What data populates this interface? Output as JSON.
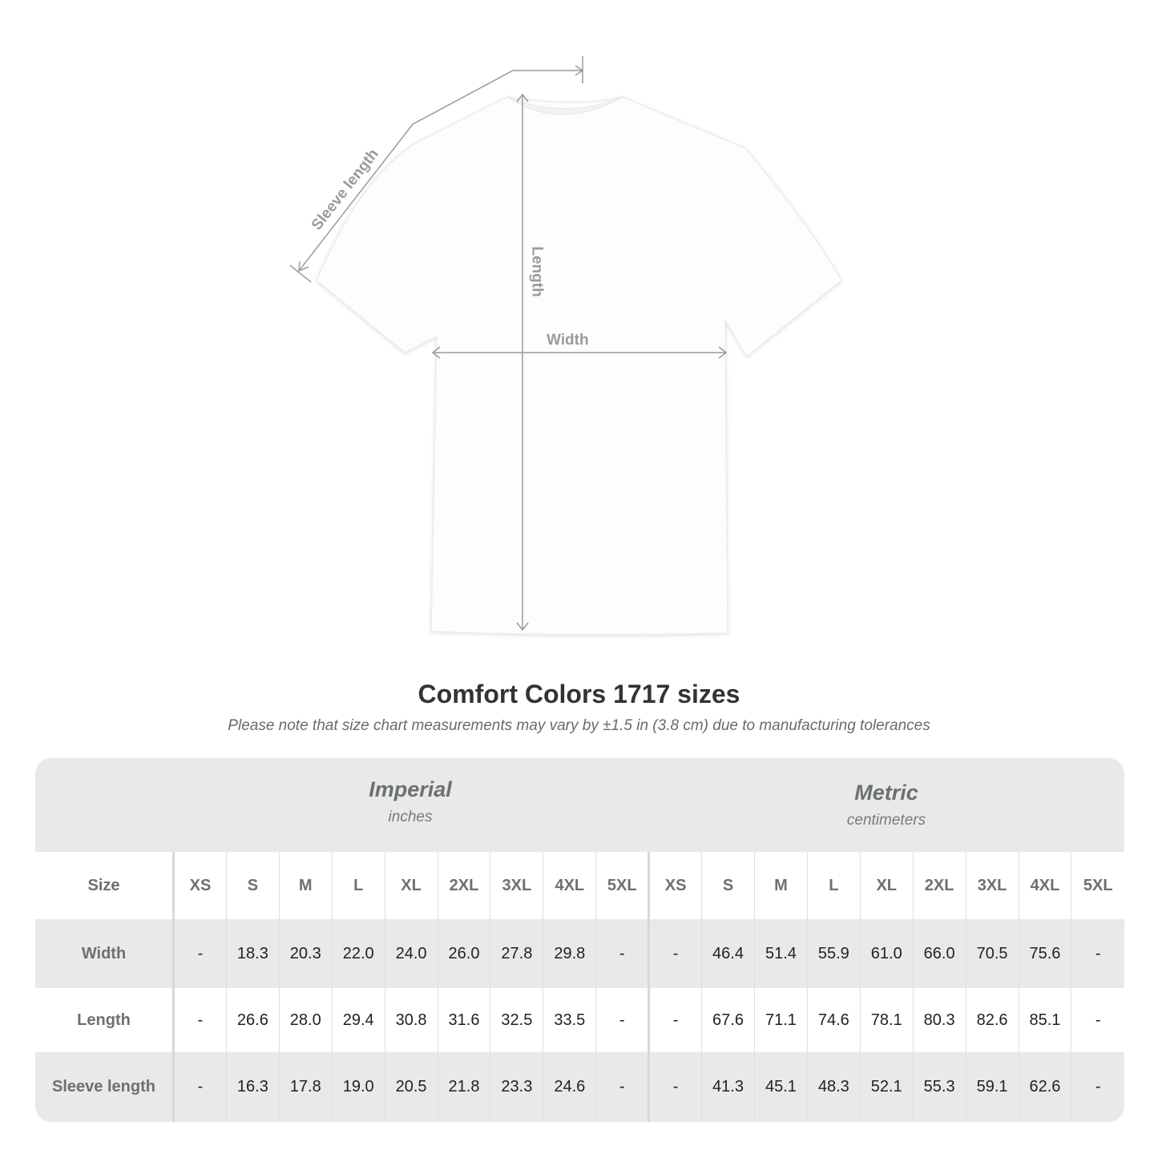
{
  "diagram": {
    "labels": {
      "sleeve": "Sleeve length",
      "length": "Length",
      "width": "Width"
    }
  },
  "title": "Comfort Colors 1717 sizes",
  "subtitle": "Please note that size chart measurements may vary by ±1.5 in (3.8 cm) due to manufacturing tolerances",
  "imperial": {
    "name": "Imperial",
    "unit": "inches"
  },
  "metric": {
    "name": "Metric",
    "unit": "centimeters"
  },
  "size_label": "Size",
  "sizes": [
    "XS",
    "S",
    "M",
    "L",
    "XL",
    "2XL",
    "3XL",
    "4XL",
    "5XL"
  ],
  "rows": [
    {
      "label": "Width",
      "imperial": [
        "-",
        "18.3",
        "20.3",
        "22.0",
        "24.0",
        "26.0",
        "27.8",
        "29.8",
        "-"
      ],
      "metric": [
        "-",
        "46.4",
        "51.4",
        "55.9",
        "61.0",
        "66.0",
        "70.5",
        "75.6",
        "-"
      ]
    },
    {
      "label": "Length",
      "imperial": [
        "-",
        "26.6",
        "28.0",
        "29.4",
        "30.8",
        "31.6",
        "32.5",
        "33.5",
        "-"
      ],
      "metric": [
        "-",
        "67.6",
        "71.1",
        "74.6",
        "78.1",
        "80.3",
        "82.6",
        "85.1",
        "-"
      ]
    },
    {
      "label": "Sleeve length",
      "imperial": [
        "-",
        "16.3",
        "17.8",
        "19.0",
        "20.5",
        "21.8",
        "23.3",
        "24.6",
        "-"
      ],
      "metric": [
        "-",
        "41.3",
        "45.1",
        "48.3",
        "52.1",
        "55.3",
        "59.1",
        "62.6",
        "-"
      ]
    }
  ]
}
